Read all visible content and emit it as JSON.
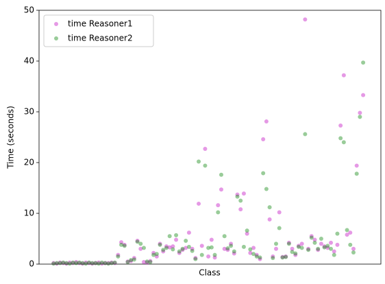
{
  "chart_data": {
    "type": "scatter",
    "x_label": "Class",
    "y_label": "Time (seconds)",
    "x": [
      0,
      2,
      4,
      6,
      8,
      10,
      12,
      14,
      16,
      18,
      20,
      22,
      24,
      26,
      28,
      30,
      32,
      34,
      36,
      38,
      40,
      42,
      44,
      46,
      48,
      50,
      52,
      54,
      56,
      58,
      60,
      62,
      64,
      66,
      68,
      70,
      72,
      74,
      76,
      78,
      80,
      82,
      84,
      86,
      88,
      90,
      92,
      94,
      96,
      98,
      100,
      102,
      104,
      106,
      108,
      110,
      112,
      114,
      116,
      118,
      120,
      122,
      124,
      126,
      128,
      130,
      132,
      134,
      136,
      138,
      140,
      142,
      144,
      146,
      148,
      150,
      152,
      154,
      156,
      158,
      160,
      162,
      164,
      166,
      168,
      170,
      172,
      174,
      176,
      178,
      180,
      182,
      184,
      186,
      188,
      190,
      192
    ],
    "xlim": [
      -9,
      203
    ],
    "ylim": [
      0,
      50
    ],
    "yticks": [
      0,
      10,
      20,
      30,
      40,
      50
    ],
    "legend": "upper left",
    "opacity": 0.4,
    "series": [
      {
        "name": "time Reasoner1",
        "color": "#bf00bf",
        "values": [
          0.2,
          0.1,
          0.3,
          0.2,
          0.1,
          0.3,
          0.2,
          0.4,
          0.2,
          0.1,
          0.3,
          0.2,
          0.1,
          0.2,
          0.3,
          0.1,
          0.2,
          0.2,
          0.3,
          0.2,
          1.8,
          4.3,
          3.8,
          0.5,
          0.6,
          1.2,
          4.6,
          3.0,
          0.4,
          0.3,
          0.6,
          2.2,
          1.5,
          4.0,
          2.5,
          3.5,
          3.3,
          3.5,
          4.8,
          2.2,
          2.8,
          3.2,
          6.2,
          3.0,
          1.2,
          11.9,
          3.6,
          22.7,
          1.5,
          4.8,
          1.3,
          11.6,
          14.7,
          3.0,
          2.8,
          4.0,
          2.1,
          13.7,
          10.8,
          13.9,
          6.0,
          2.2,
          3.2,
          1.8,
          1.0,
          24.6,
          28.1,
          8.8,
          1.5,
          3.0,
          10.2,
          1.4,
          1.5,
          4.2,
          3.0,
          1.8,
          3.6,
          4.0,
          48.2,
          3.0,
          5.5,
          4.8,
          2.8,
          4.0,
          3.5,
          3.2,
          4.2,
          2.5,
          3.8,
          27.3,
          37.2,
          5.8,
          6.2,
          3.0,
          19.4,
          29.8,
          33.3
        ]
      },
      {
        "name": "time Reasoner2",
        "color": "#008000",
        "values": [
          0.1,
          0.2,
          0.2,
          0.3,
          0.2,
          0.1,
          0.3,
          0.2,
          0.3,
          0.2,
          0.1,
          0.3,
          0.2,
          0.2,
          0.1,
          0.3,
          0.2,
          0.1,
          0.2,
          0.3,
          1.5,
          3.8,
          3.6,
          0.4,
          0.8,
          0.9,
          4.4,
          4.0,
          3.2,
          0.5,
          0.4,
          1.8,
          2.0,
          3.8,
          2.8,
          3.2,
          5.5,
          2.9,
          5.7,
          2.5,
          3.0,
          4.6,
          3.4,
          2.6,
          1.0,
          20.2,
          1.8,
          19.4,
          3.2,
          3.3,
          1.8,
          10.2,
          17.6,
          5.5,
          3.1,
          3.6,
          2.5,
          13.3,
          12.5,
          3.4,
          6.6,
          2.9,
          2.0,
          1.5,
          1.3,
          17.9,
          14.8,
          11.2,
          1.2,
          4.0,
          7.1,
          1.3,
          1.4,
          4.0,
          2.4,
          2.1,
          3.4,
          3.2,
          25.6,
          2.8,
          5.2,
          4.2,
          3.0,
          5.0,
          3.3,
          3.6,
          3.0,
          1.8,
          6.0,
          24.8,
          24.0,
          6.7,
          3.8,
          2.3,
          17.8,
          29.0,
          39.7
        ]
      }
    ]
  }
}
